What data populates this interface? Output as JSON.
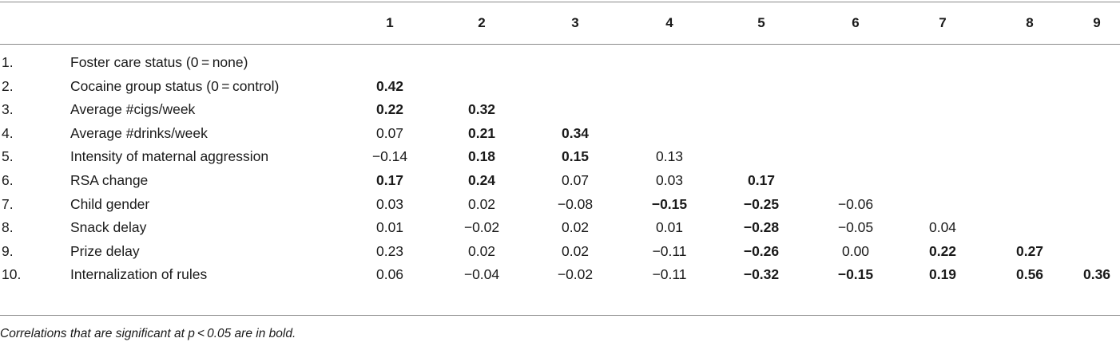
{
  "table": {
    "columns": [
      "1",
      "2",
      "3",
      "4",
      "5",
      "6",
      "7",
      "8",
      "9"
    ],
    "rows": [
      {
        "num": "1.",
        "label": "Foster care status (0 = none)",
        "cells": []
      },
      {
        "num": "2.",
        "label": "Cocaine group status (0 = control)",
        "cells": [
          {
            "v": "0.42",
            "b": true
          }
        ]
      },
      {
        "num": "3.",
        "label": "Average #cigs/week",
        "cells": [
          {
            "v": "0.22",
            "b": true
          },
          {
            "v": "0.32",
            "b": true
          }
        ]
      },
      {
        "num": "4.",
        "label": "Average #drinks/week",
        "cells": [
          {
            "v": "0.07",
            "b": false
          },
          {
            "v": "0.21",
            "b": true
          },
          {
            "v": "0.34",
            "b": true
          }
        ]
      },
      {
        "num": "5.",
        "label": "Intensity of maternal aggression",
        "cells": [
          {
            "v": "−0.14",
            "b": false
          },
          {
            "v": "0.18",
            "b": true
          },
          {
            "v": "0.15",
            "b": true
          },
          {
            "v": "0.13",
            "b": false
          }
        ]
      },
      {
        "num": "6.",
        "label": "RSA change",
        "cells": [
          {
            "v": "0.17",
            "b": true
          },
          {
            "v": "0.24",
            "b": true
          },
          {
            "v": "0.07",
            "b": false
          },
          {
            "v": "0.03",
            "b": false
          },
          {
            "v": "0.17",
            "b": true
          }
        ]
      },
      {
        "num": "7.",
        "label": "Child gender",
        "cells": [
          {
            "v": "0.03",
            "b": false
          },
          {
            "v": "0.02",
            "b": false
          },
          {
            "v": "−0.08",
            "b": false
          },
          {
            "v": "−0.15",
            "b": true
          },
          {
            "v": "−0.25",
            "b": true
          },
          {
            "v": "−0.06",
            "b": false
          }
        ]
      },
      {
        "num": "8.",
        "label": "Snack delay",
        "cells": [
          {
            "v": "0.01",
            "b": false
          },
          {
            "v": "−0.02",
            "b": false
          },
          {
            "v": "0.02",
            "b": false
          },
          {
            "v": "0.01",
            "b": false
          },
          {
            "v": "−0.28",
            "b": true
          },
          {
            "v": "−0.05",
            "b": false
          },
          {
            "v": "0.04",
            "b": false
          }
        ]
      },
      {
        "num": "9.",
        "label": "Prize delay",
        "cells": [
          {
            "v": "0.23",
            "b": false
          },
          {
            "v": "0.02",
            "b": false
          },
          {
            "v": "0.02",
            "b": false
          },
          {
            "v": "−0.11",
            "b": false
          },
          {
            "v": "−0.26",
            "b": true
          },
          {
            "v": "0.00",
            "b": false
          },
          {
            "v": "0.22",
            "b": true
          },
          {
            "v": "0.27",
            "b": true
          }
        ]
      },
      {
        "num": "10.",
        "label": "Internalization of rules",
        "cells": [
          {
            "v": "0.06",
            "b": false
          },
          {
            "v": "−0.04",
            "b": false
          },
          {
            "v": "−0.02",
            "b": false
          },
          {
            "v": "−0.11",
            "b": false
          },
          {
            "v": "−0.32",
            "b": true
          },
          {
            "v": "−0.15",
            "b": true
          },
          {
            "v": "0.19",
            "b": true
          },
          {
            "v": "0.56",
            "b": true
          },
          {
            "v": "0.36",
            "b": true
          }
        ]
      }
    ]
  },
  "footnote": "Correlations that are significant at p < 0.05 are in bold."
}
